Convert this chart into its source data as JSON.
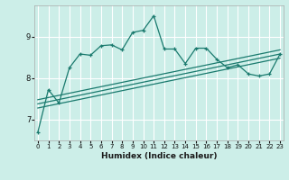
{
  "xlabel": "Humidex (Indice chaleur)",
  "ylabel": "",
  "bg_color": "#cceee8",
  "line_color": "#1a7a6e",
  "grid_color": "#ffffff",
  "x_data": [
    0,
    1,
    2,
    3,
    4,
    5,
    6,
    7,
    8,
    9,
    10,
    11,
    12,
    13,
    14,
    15,
    16,
    17,
    18,
    19,
    20,
    21,
    22,
    23
  ],
  "y_main": [
    6.7,
    7.72,
    7.4,
    8.25,
    8.58,
    8.55,
    8.78,
    8.8,
    8.68,
    9.1,
    9.15,
    9.5,
    8.7,
    8.7,
    8.35,
    8.72,
    8.72,
    8.45,
    8.25,
    8.32,
    8.1,
    8.05,
    8.1,
    8.58
  ],
  "trend1_x": [
    0,
    23
  ],
  "trend1_y": [
    7.28,
    8.48
  ],
  "trend2_x": [
    0,
    23
  ],
  "trend2_y": [
    7.38,
    8.58
  ],
  "trend3_x": [
    0,
    23
  ],
  "trend3_y": [
    7.48,
    8.68
  ],
  "xlim": [
    -0.3,
    23.3
  ],
  "ylim": [
    6.5,
    9.75
  ],
  "yticks": [
    7,
    8,
    9
  ],
  "xticks": [
    0,
    1,
    2,
    3,
    4,
    5,
    6,
    7,
    8,
    9,
    10,
    11,
    12,
    13,
    14,
    15,
    16,
    17,
    18,
    19,
    20,
    21,
    22,
    23
  ]
}
